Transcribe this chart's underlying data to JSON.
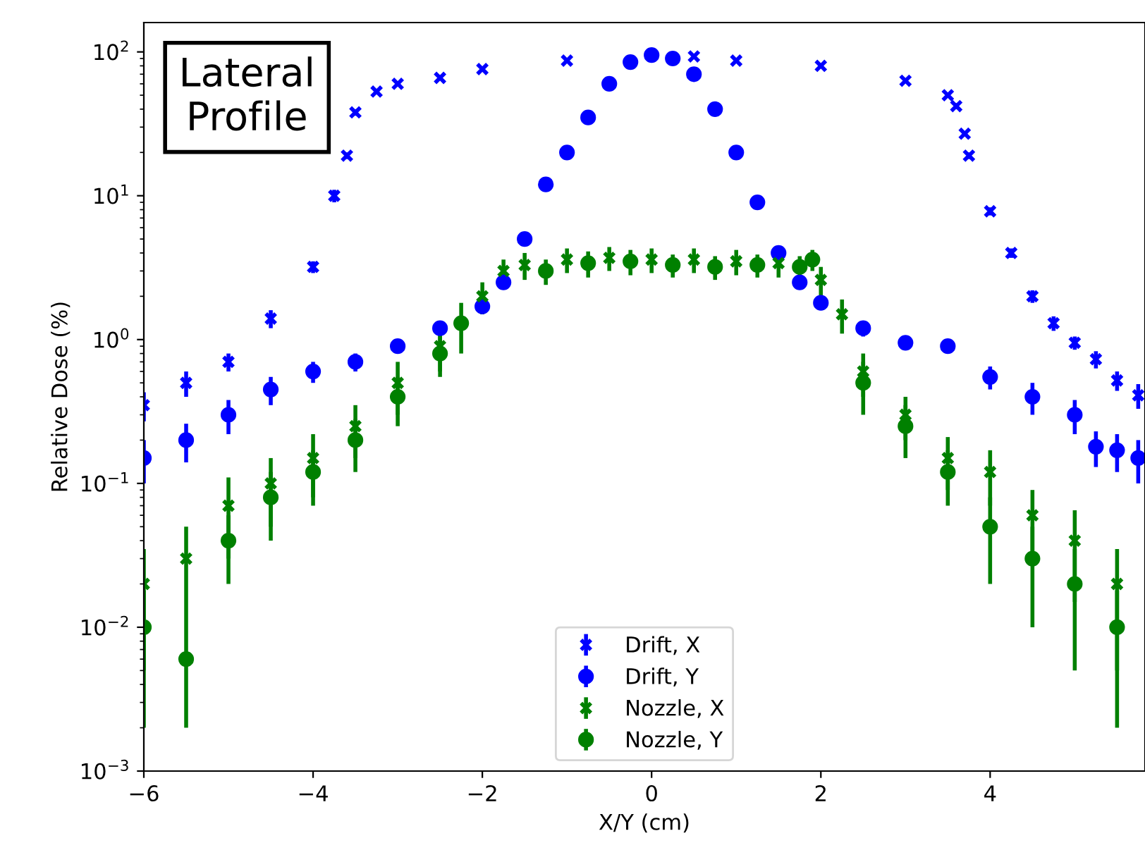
{
  "chart_data": {
    "type": "scatter",
    "xlabel": "X/Y (cm)",
    "ylabel": "Relative Dose (%)",
    "annotations": [
      "Lateral\nProfile"
    ],
    "log": "y",
    "grid": false,
    "legend": "bottom",
    "xlim": [
      -6,
      5.83
    ],
    "xticks": [
      {
        "value": -6,
        "label": "−6"
      },
      {
        "value": -4,
        "label": "−4"
      },
      {
        "value": -2,
        "label": "−2"
      },
      0,
      2,
      4
    ],
    "ylim": [
      0.001,
      160
    ],
    "yticks": [
      {
        "value": 0.001,
        "label": "10$^{−3}$"
      },
      {
        "value": 0.01,
        "label": "10$^{−2}$"
      },
      {
        "value": 0.1,
        "label": "10$^{−1}$"
      },
      {
        "value": 1,
        "label": "10$^{0}$"
      },
      {
        "value": 10,
        "label": "10$^{1}$"
      },
      {
        "value": 100,
        "label": "10$^{2}$"
      }
    ],
    "series": [
      {
        "name": "Drift, X",
        "color": "#0000ff",
        "marker": "cross",
        "x": [
          -6,
          -5.5,
          -5,
          -4.5,
          -4,
          -3.75,
          -3.6,
          -3.5,
          -3.25,
          -3,
          -2.5,
          -2,
          -1,
          0.5,
          1,
          2,
          3,
          3.5,
          3.6,
          3.7,
          3.75,
          4,
          4.25,
          4.5,
          4.75,
          5,
          5.25,
          5.5,
          5.75
        ],
        "values": [
          0.35,
          0.5,
          0.7,
          1.4,
          3.2,
          10,
          19,
          38,
          53,
          60,
          66,
          76,
          87,
          93,
          87,
          80,
          63,
          50,
          42,
          27,
          19,
          7.8,
          4,
          2,
          1.3,
          0.95,
          0.73,
          0.52,
          0.41
        ],
        "errors": [
          0.08,
          0.1,
          0.1,
          0.2,
          0.3,
          1,
          1,
          2,
          2,
          2,
          2,
          2,
          2,
          2,
          2,
          2,
          2,
          2,
          2,
          1,
          1,
          0.5,
          0.3,
          0.2,
          0.15,
          0.1,
          0.1,
          0.08,
          0.08
        ]
      },
      {
        "name": "Drift, Y",
        "color": "#0000ff",
        "marker": "circle",
        "x": [
          -6,
          -5.5,
          -5,
          -4.5,
          -4,
          -3.5,
          -3,
          -2.5,
          -2,
          -1.75,
          -1.5,
          -1.25,
          -1,
          -0.75,
          -0.5,
          -0.25,
          0,
          0.25,
          0.5,
          0.75,
          1,
          1.25,
          1.5,
          1.75,
          2,
          2.5,
          3,
          3.5,
          4,
          4.5,
          5,
          5.25,
          5.5,
          5.75
        ],
        "values": [
          0.15,
          0.2,
          0.3,
          0.45,
          0.6,
          0.7,
          0.9,
          1.2,
          1.7,
          2.5,
          5,
          12,
          20,
          35,
          60,
          85,
          95,
          90,
          70,
          40,
          20,
          9,
          4,
          2.5,
          1.8,
          1.2,
          0.95,
          0.9,
          0.55,
          0.4,
          0.3,
          0.18,
          0.17,
          0.15
        ],
        "errors": [
          0.05,
          0.06,
          0.08,
          0.1,
          0.1,
          0.1,
          0.1,
          0.15,
          0.2,
          0.2,
          0.3,
          0.5,
          1,
          1,
          2,
          2,
          2,
          2,
          2,
          1,
          1,
          0.5,
          0.3,
          0.2,
          0.2,
          0.15,
          0.1,
          0.1,
          0.1,
          0.1,
          0.08,
          0.05,
          0.05,
          0.05
        ]
      },
      {
        "name": "Nozzle, X",
        "color": "#008000",
        "marker": "cross",
        "x": [
          -6,
          -5.5,
          -5,
          -4.5,
          -4,
          -3.5,
          -3,
          -2.5,
          -2,
          -1.75,
          -1.5,
          -1,
          -0.5,
          0,
          0.5,
          1,
          1.5,
          2,
          2.25,
          2.5,
          3,
          3.5,
          4,
          4.5,
          5,
          5.5
        ],
        "values": [
          0.02,
          0.03,
          0.07,
          0.1,
          0.15,
          0.25,
          0.5,
          0.9,
          2,
          3,
          3.3,
          3.6,
          3.7,
          3.6,
          3.6,
          3.5,
          3.4,
          2.6,
          1.5,
          0.6,
          0.3,
          0.15,
          0.12,
          0.06,
          0.04,
          0.02
        ],
        "errors": [
          0.015,
          0.02,
          0.04,
          0.05,
          0.07,
          0.1,
          0.2,
          0.3,
          0.5,
          0.6,
          0.7,
          0.7,
          0.7,
          0.7,
          0.7,
          0.7,
          0.7,
          0.6,
          0.4,
          0.2,
          0.1,
          0.06,
          0.05,
          0.03,
          0.025,
          0.015
        ]
      },
      {
        "name": "Nozzle, Y",
        "color": "#008000",
        "marker": "circle",
        "x": [
          -6,
          -5.5,
          -5,
          -4.5,
          -4,
          -3.5,
          -3,
          -2.5,
          -2.25,
          -1.25,
          -0.75,
          -0.25,
          0.25,
          0.75,
          1.25,
          1.75,
          1.9,
          2.5,
          3,
          3.5,
          4,
          4.5,
          5,
          5.5
        ],
        "values": [
          0.01,
          0.006,
          0.04,
          0.08,
          0.12,
          0.2,
          0.4,
          0.8,
          1.3,
          3,
          3.4,
          3.5,
          3.3,
          3.2,
          3.3,
          3.2,
          3.6,
          0.5,
          0.25,
          0.12,
          0.05,
          0.03,
          0.02,
          0.01
        ],
        "errors": [
          0.008,
          0.004,
          0.02,
          0.04,
          0.05,
          0.08,
          0.15,
          0.25,
          0.5,
          0.6,
          0.7,
          0.7,
          0.6,
          0.6,
          0.6,
          0.6,
          0.6,
          0.2,
          0.1,
          0.05,
          0.03,
          0.02,
          0.015,
          0.008
        ]
      }
    ]
  }
}
